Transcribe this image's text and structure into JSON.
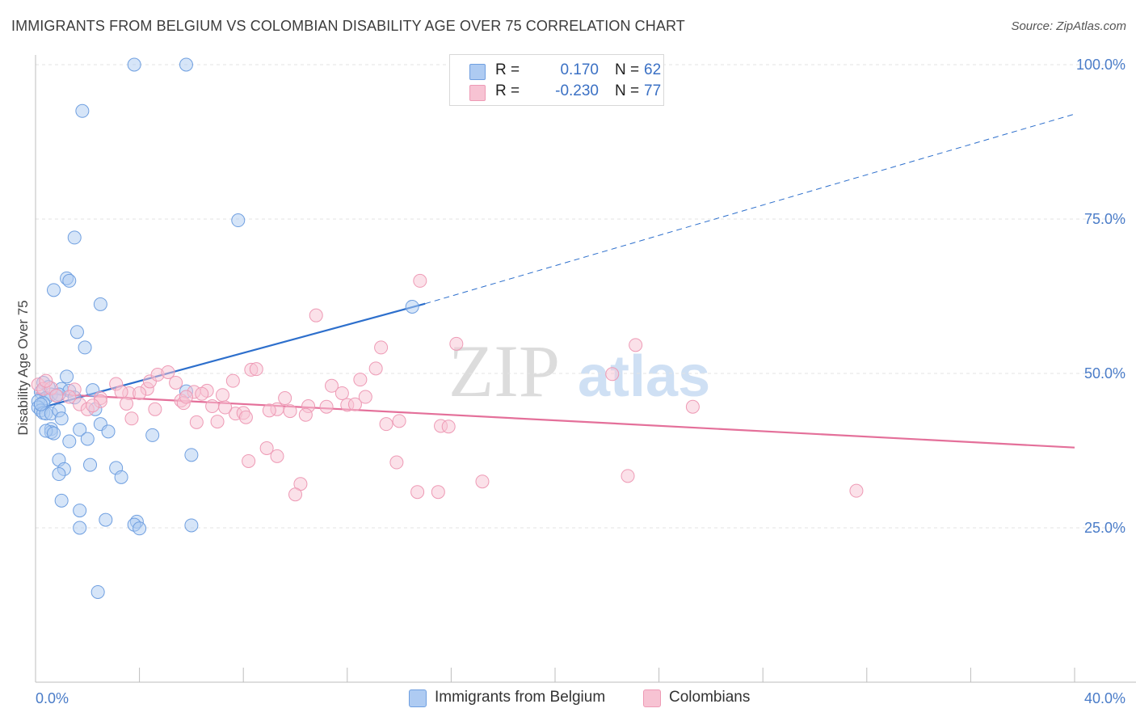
{
  "title": "IMMIGRANTS FROM BELGIUM VS COLOMBIAN DISABILITY AGE OVER 75 CORRELATION CHART",
  "source": "Source: ZipAtlas.com",
  "watermark": "ZIPatlas",
  "colors": {
    "blue_fill": "#aecbf2",
    "blue_stroke": "#6f9fe0",
    "blue_line": "#2d6fcc",
    "pink_fill": "#f7c3d3",
    "pink_stroke": "#ee9ab5",
    "pink_line": "#e4709a",
    "tick_text": "#4a7cc8",
    "grid": "#e3e3e3"
  },
  "legend_top": {
    "rows": [
      {
        "r_label": "R =",
        "r_value": "0.170",
        "n_label": "N =",
        "n_value": "62"
      },
      {
        "r_label": "R =",
        "r_value": "-0.230",
        "n_label": "N =",
        "n_value": "77"
      }
    ]
  },
  "legend_bottom": {
    "items": [
      {
        "label": "Immigrants from Belgium"
      },
      {
        "label": "Colombians"
      }
    ]
  },
  "chart_data": {
    "type": "scatter",
    "title": "IMMIGRANTS FROM BELGIUM VS COLOMBIAN DISABILITY AGE OVER 75 CORRELATION CHART",
    "xlabel": "",
    "ylabel": "Disability Age Over 75",
    "xlim": [
      0,
      40
    ],
    "ylim": [
      0,
      100
    ],
    "x_tick_labels": [
      "0.0%",
      "40.0%"
    ],
    "y_ticks": [
      25,
      50,
      75,
      100
    ],
    "y_tick_labels": [
      "25.0%",
      "50.0%",
      "75.0%",
      "100.0%"
    ],
    "grid": true,
    "legend_placement": "top-center and bottom",
    "series": [
      {
        "name": "Immigrants from Belgium",
        "color": "#aecbf2",
        "r": 0.17,
        "n": 62,
        "trend": {
          "x": [
            0,
            15
          ],
          "y": [
            44.2,
            61.3
          ],
          "extended_to": [
            40,
            92.0
          ]
        },
        "points": [
          [
            3.8,
            100
          ],
          [
            5.8,
            100
          ],
          [
            1.8,
            92.5
          ],
          [
            7.8,
            74.8
          ],
          [
            1.5,
            72.0
          ],
          [
            1.2,
            65.4
          ],
          [
            1.3,
            65.0
          ],
          [
            0.7,
            63.5
          ],
          [
            2.5,
            61.2
          ],
          [
            14.5,
            60.8
          ],
          [
            1.6,
            56.7
          ],
          [
            1.9,
            54.2
          ],
          [
            1.2,
            49.5
          ],
          [
            0.3,
            48.5
          ],
          [
            0.5,
            47.8
          ],
          [
            1.0,
            47.5
          ],
          [
            1.3,
            47.2
          ],
          [
            2.2,
            47.3
          ],
          [
            5.8,
            47.1
          ],
          [
            0.2,
            47.0
          ],
          [
            0.6,
            46.6
          ],
          [
            0.9,
            46.6
          ],
          [
            0.4,
            46.0
          ],
          [
            1.5,
            46.1
          ],
          [
            0.1,
            45.5
          ],
          [
            0.3,
            45.2
          ],
          [
            0.1,
            44.5
          ],
          [
            0.2,
            44.0
          ],
          [
            0.3,
            43.6
          ],
          [
            0.4,
            43.5
          ],
          [
            0.6,
            43.5
          ],
          [
            0.9,
            44.0
          ],
          [
            2.3,
            44.2
          ],
          [
            1.0,
            42.7
          ],
          [
            2.5,
            41.8
          ],
          [
            0.6,
            41.0
          ],
          [
            1.7,
            40.9
          ],
          [
            0.6,
            40.5
          ],
          [
            0.4,
            40.7
          ],
          [
            0.7,
            40.3
          ],
          [
            2.8,
            40.6
          ],
          [
            4.5,
            40.0
          ],
          [
            2.0,
            39.4
          ],
          [
            1.3,
            39.0
          ],
          [
            6.0,
            36.8
          ],
          [
            0.9,
            36.0
          ],
          [
            2.1,
            35.2
          ],
          [
            3.1,
            34.7
          ],
          [
            1.1,
            34.5
          ],
          [
            0.9,
            33.7
          ],
          [
            3.3,
            33.2
          ],
          [
            1.0,
            29.4
          ],
          [
            1.7,
            27.8
          ],
          [
            2.7,
            26.3
          ],
          [
            3.9,
            26.0
          ],
          [
            3.8,
            25.5
          ],
          [
            4.0,
            24.9
          ],
          [
            6.0,
            25.4
          ],
          [
            1.7,
            25.0
          ],
          [
            2.4,
            14.6
          ],
          [
            0.2,
            45.0
          ],
          [
            0.8,
            46.4
          ]
        ]
      },
      {
        "name": "Colombians",
        "color": "#f7c3d3",
        "r": -0.23,
        "n": 77,
        "trend": {
          "x": [
            0,
            40
          ],
          "y": [
            46.8,
            38.0
          ]
        },
        "points": [
          [
            0.1,
            48.2
          ],
          [
            0.3,
            47.5
          ],
          [
            0.6,
            47.6
          ],
          [
            1.5,
            47.4
          ],
          [
            3.1,
            48.3
          ],
          [
            0.8,
            46.4
          ],
          [
            1.3,
            46.2
          ],
          [
            2.5,
            46.0
          ],
          [
            3.6,
            46.8
          ],
          [
            4.3,
            47.5
          ],
          [
            4.4,
            48.7
          ],
          [
            4.7,
            49.8
          ],
          [
            5.1,
            50.2
          ],
          [
            5.4,
            48.5
          ],
          [
            6.1,
            47.0
          ],
          [
            6.6,
            47.2
          ],
          [
            7.6,
            48.8
          ],
          [
            7.2,
            46.5
          ],
          [
            8.3,
            50.6
          ],
          [
            8.5,
            50.7
          ],
          [
            2.5,
            45.5
          ],
          [
            3.5,
            45.1
          ],
          [
            4.6,
            44.2
          ],
          [
            5.6,
            45.6
          ],
          [
            5.7,
            45.2
          ],
          [
            6.8,
            44.7
          ],
          [
            7.7,
            43.5
          ],
          [
            8.0,
            43.6
          ],
          [
            9.3,
            44.2
          ],
          [
            9.6,
            46.0
          ],
          [
            10.5,
            44.7
          ],
          [
            11.4,
            48.0
          ],
          [
            11.8,
            46.8
          ],
          [
            12.0,
            44.9
          ],
          [
            12.3,
            45.0
          ],
          [
            12.5,
            49.0
          ],
          [
            12.7,
            46.2
          ],
          [
            13.1,
            50.8
          ],
          [
            13.3,
            54.2
          ],
          [
            10.8,
            59.4
          ],
          [
            14.8,
            65.0
          ],
          [
            16.2,
            54.8
          ],
          [
            23.1,
            54.6
          ],
          [
            22.2,
            49.9
          ],
          [
            8.1,
            42.9
          ],
          [
            7.0,
            42.2
          ],
          [
            6.2,
            42.1
          ],
          [
            3.7,
            42.7
          ],
          [
            9.0,
            44.0
          ],
          [
            10.4,
            43.3
          ],
          [
            13.5,
            41.8
          ],
          [
            14.0,
            42.3
          ],
          [
            15.6,
            41.5
          ],
          [
            15.9,
            41.4
          ],
          [
            25.3,
            44.6
          ],
          [
            8.9,
            37.9
          ],
          [
            9.3,
            36.6
          ],
          [
            8.2,
            35.8
          ],
          [
            13.9,
            35.6
          ],
          [
            10.2,
            32.1
          ],
          [
            10.0,
            30.4
          ],
          [
            14.7,
            30.8
          ],
          [
            15.5,
            30.8
          ],
          [
            17.2,
            32.5
          ],
          [
            22.8,
            33.4
          ],
          [
            31.6,
            31.0
          ],
          [
            1.7,
            45.0
          ],
          [
            2.0,
            44.2
          ],
          [
            2.2,
            44.8
          ],
          [
            3.3,
            47.0
          ],
          [
            4.0,
            46.8
          ],
          [
            5.8,
            46.2
          ],
          [
            6.4,
            46.7
          ],
          [
            7.3,
            44.5
          ],
          [
            9.8,
            43.9
          ],
          [
            11.2,
            44.6
          ],
          [
            0.4,
            48.8
          ]
        ]
      }
    ]
  }
}
